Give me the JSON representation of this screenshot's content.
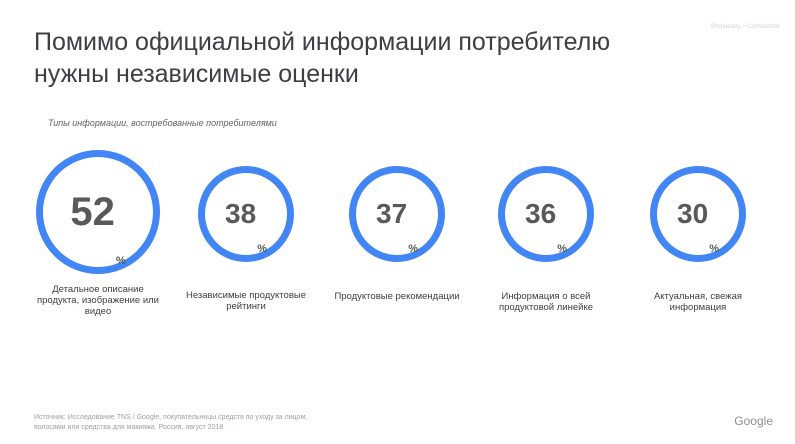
{
  "header": {
    "title_line1": "Помимо официальной информации потребителю",
    "title_line2": "нужны независимые оценки",
    "confidential": "Proprietary + Confidential"
  },
  "subtitle": "Типы информации, востребованные потребителями",
  "accent_color": "#4285f4",
  "stats": [
    {
      "value": "52",
      "unit": "%",
      "label": "Детальное описание продукта, изображение или видео"
    },
    {
      "value": "38",
      "unit": "%",
      "label": "Независимые продуктовые рейтинги"
    },
    {
      "value": "37",
      "unit": "%",
      "label": "Продуктовые рекомендации"
    },
    {
      "value": "36",
      "unit": "%",
      "label": "Информация о всей продуктовой линейке"
    },
    {
      "value": "30",
      "unit": "%",
      "label": "Актуальная, свежая информация"
    }
  ],
  "footer": {
    "source_line1": "Источник: Исследование TNS / Google, покупательницы средств по уходу за лицом,",
    "source_line2": "волосами или средства для макияжа. Россия, август 2018",
    "brand": "Google"
  }
}
